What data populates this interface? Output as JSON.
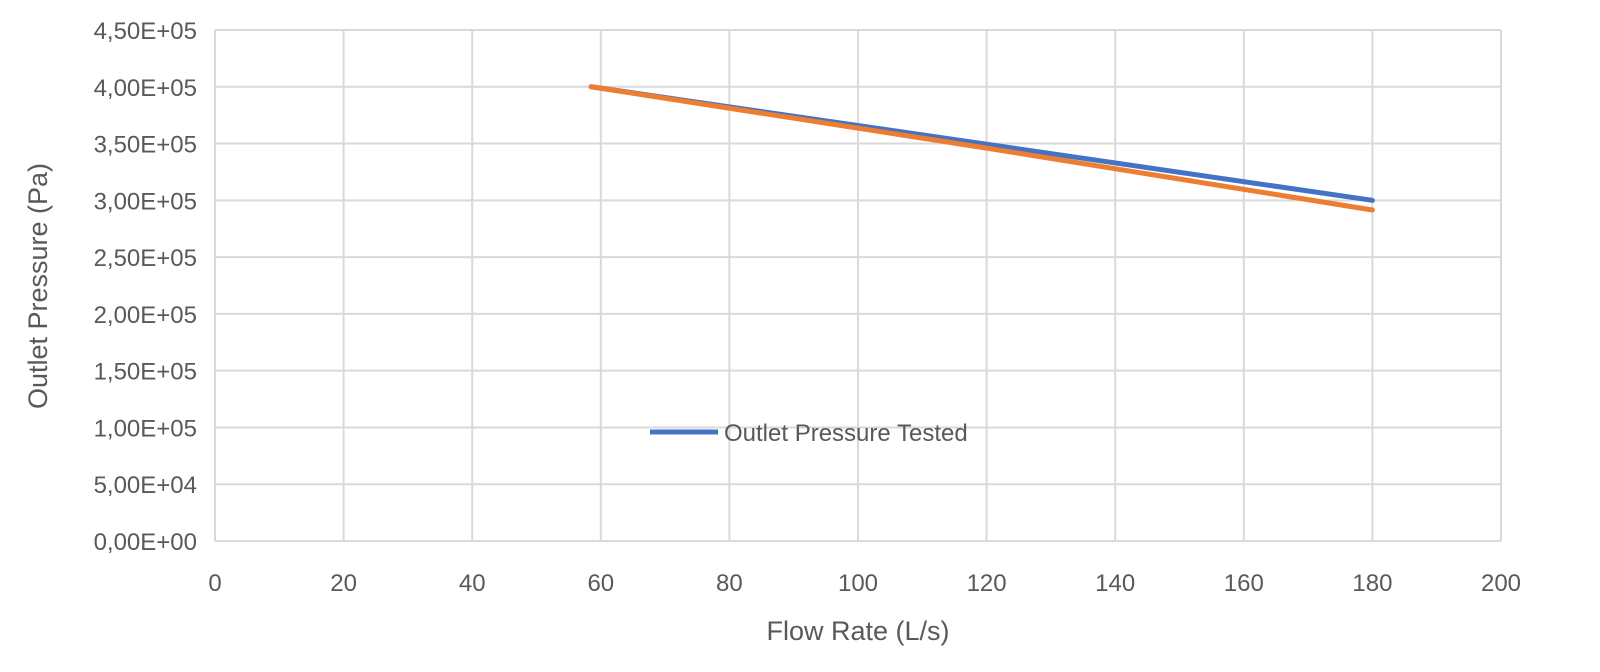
{
  "chart_data": {
    "type": "line",
    "title": "",
    "xlabel": "Flow Rate (L/s)",
    "ylabel": "Outlet Pressure (Pa)",
    "xlim": [
      0,
      200
    ],
    "ylim": [
      0,
      450000
    ],
    "x_ticks": [
      0,
      20,
      40,
      60,
      80,
      100,
      120,
      140,
      160,
      180,
      200
    ],
    "y_ticks": [
      0,
      50000,
      100000,
      150000,
      200000,
      250000,
      300000,
      350000,
      400000,
      450000
    ],
    "x_tick_labels": [
      "0",
      "20",
      "40",
      "60",
      "80",
      "100",
      "120",
      "140",
      "160",
      "180",
      "200"
    ],
    "y_tick_labels": [
      "0,00E+00",
      "5,00E+04",
      "1,00E+05",
      "1,50E+05",
      "2,00E+05",
      "2,50E+05",
      "3,00E+05",
      "3,50E+05",
      "4,00E+05",
      "4,50E+05"
    ],
    "grid": true,
    "legend_placement": "inside-center-left",
    "series": [
      {
        "name": "Outlet Pressure Tested",
        "color": "#4472C4",
        "x": [
          58.5,
          120,
          180
        ],
        "y": [
          400000,
          349400,
          300000
        ]
      },
      {
        "color": "#ED7D31",
        "x": [
          58.5,
          120,
          180
        ],
        "y": [
          400000,
          346000,
          291500
        ]
      }
    ]
  }
}
